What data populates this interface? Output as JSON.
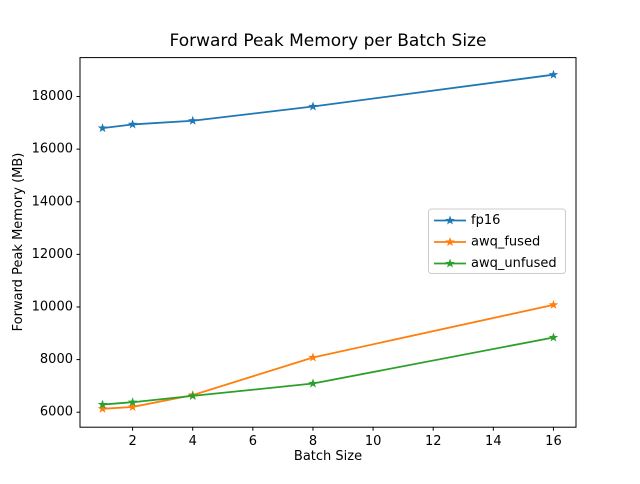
{
  "figure": {
    "background": "#ffffff",
    "spine_color": "#000000",
    "legend_border_color": "#cccccc"
  },
  "chart_data": {
    "type": "line",
    "title": "Forward Peak Memory per Batch Size",
    "xlabel": "Batch Size",
    "ylabel": "Forward Peak Memory (MB)",
    "x": [
      1,
      2,
      4,
      8,
      16
    ],
    "series": [
      {
        "name": "fp16",
        "color": "#1f77b4",
        "marker": "star",
        "values": [
          16800,
          16940,
          17080,
          17620,
          18830
        ]
      },
      {
        "name": "awq_fused",
        "color": "#ff7f0e",
        "marker": "star",
        "values": [
          6130,
          6200,
          6650,
          8080,
          10080
        ]
      },
      {
        "name": "awq_unfused",
        "color": "#2ca02c",
        "marker": "star",
        "values": [
          6290,
          6380,
          6620,
          7090,
          8840
        ]
      }
    ],
    "xticks": [
      2,
      4,
      6,
      8,
      10,
      12,
      14,
      16
    ],
    "yticks": [
      6000,
      8000,
      10000,
      12000,
      14000,
      16000,
      18000
    ],
    "xlim": [
      0.25,
      16.75
    ],
    "ylim": [
      5430,
      19480
    ],
    "grid": false,
    "legend_position": "center-right",
    "legend_entries": [
      "fp16",
      "awq_fused",
      "awq_unfused"
    ]
  }
}
